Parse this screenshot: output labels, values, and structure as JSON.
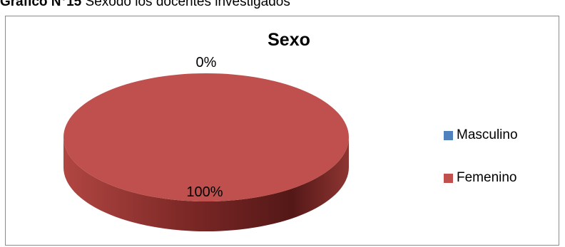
{
  "caption": {
    "label": "Gráfico N°15",
    "text": "Sexodo los docentes investigados"
  },
  "chart_data": {
    "type": "pie",
    "title": "Sexo",
    "categories": [
      "Masculino",
      "Femenino"
    ],
    "values": [
      0,
      100
    ],
    "data_labels": [
      "0%",
      "100%"
    ],
    "colors": [
      "#4f81bd",
      "#c0504d"
    ],
    "legend_position": "right",
    "three_d": true
  }
}
